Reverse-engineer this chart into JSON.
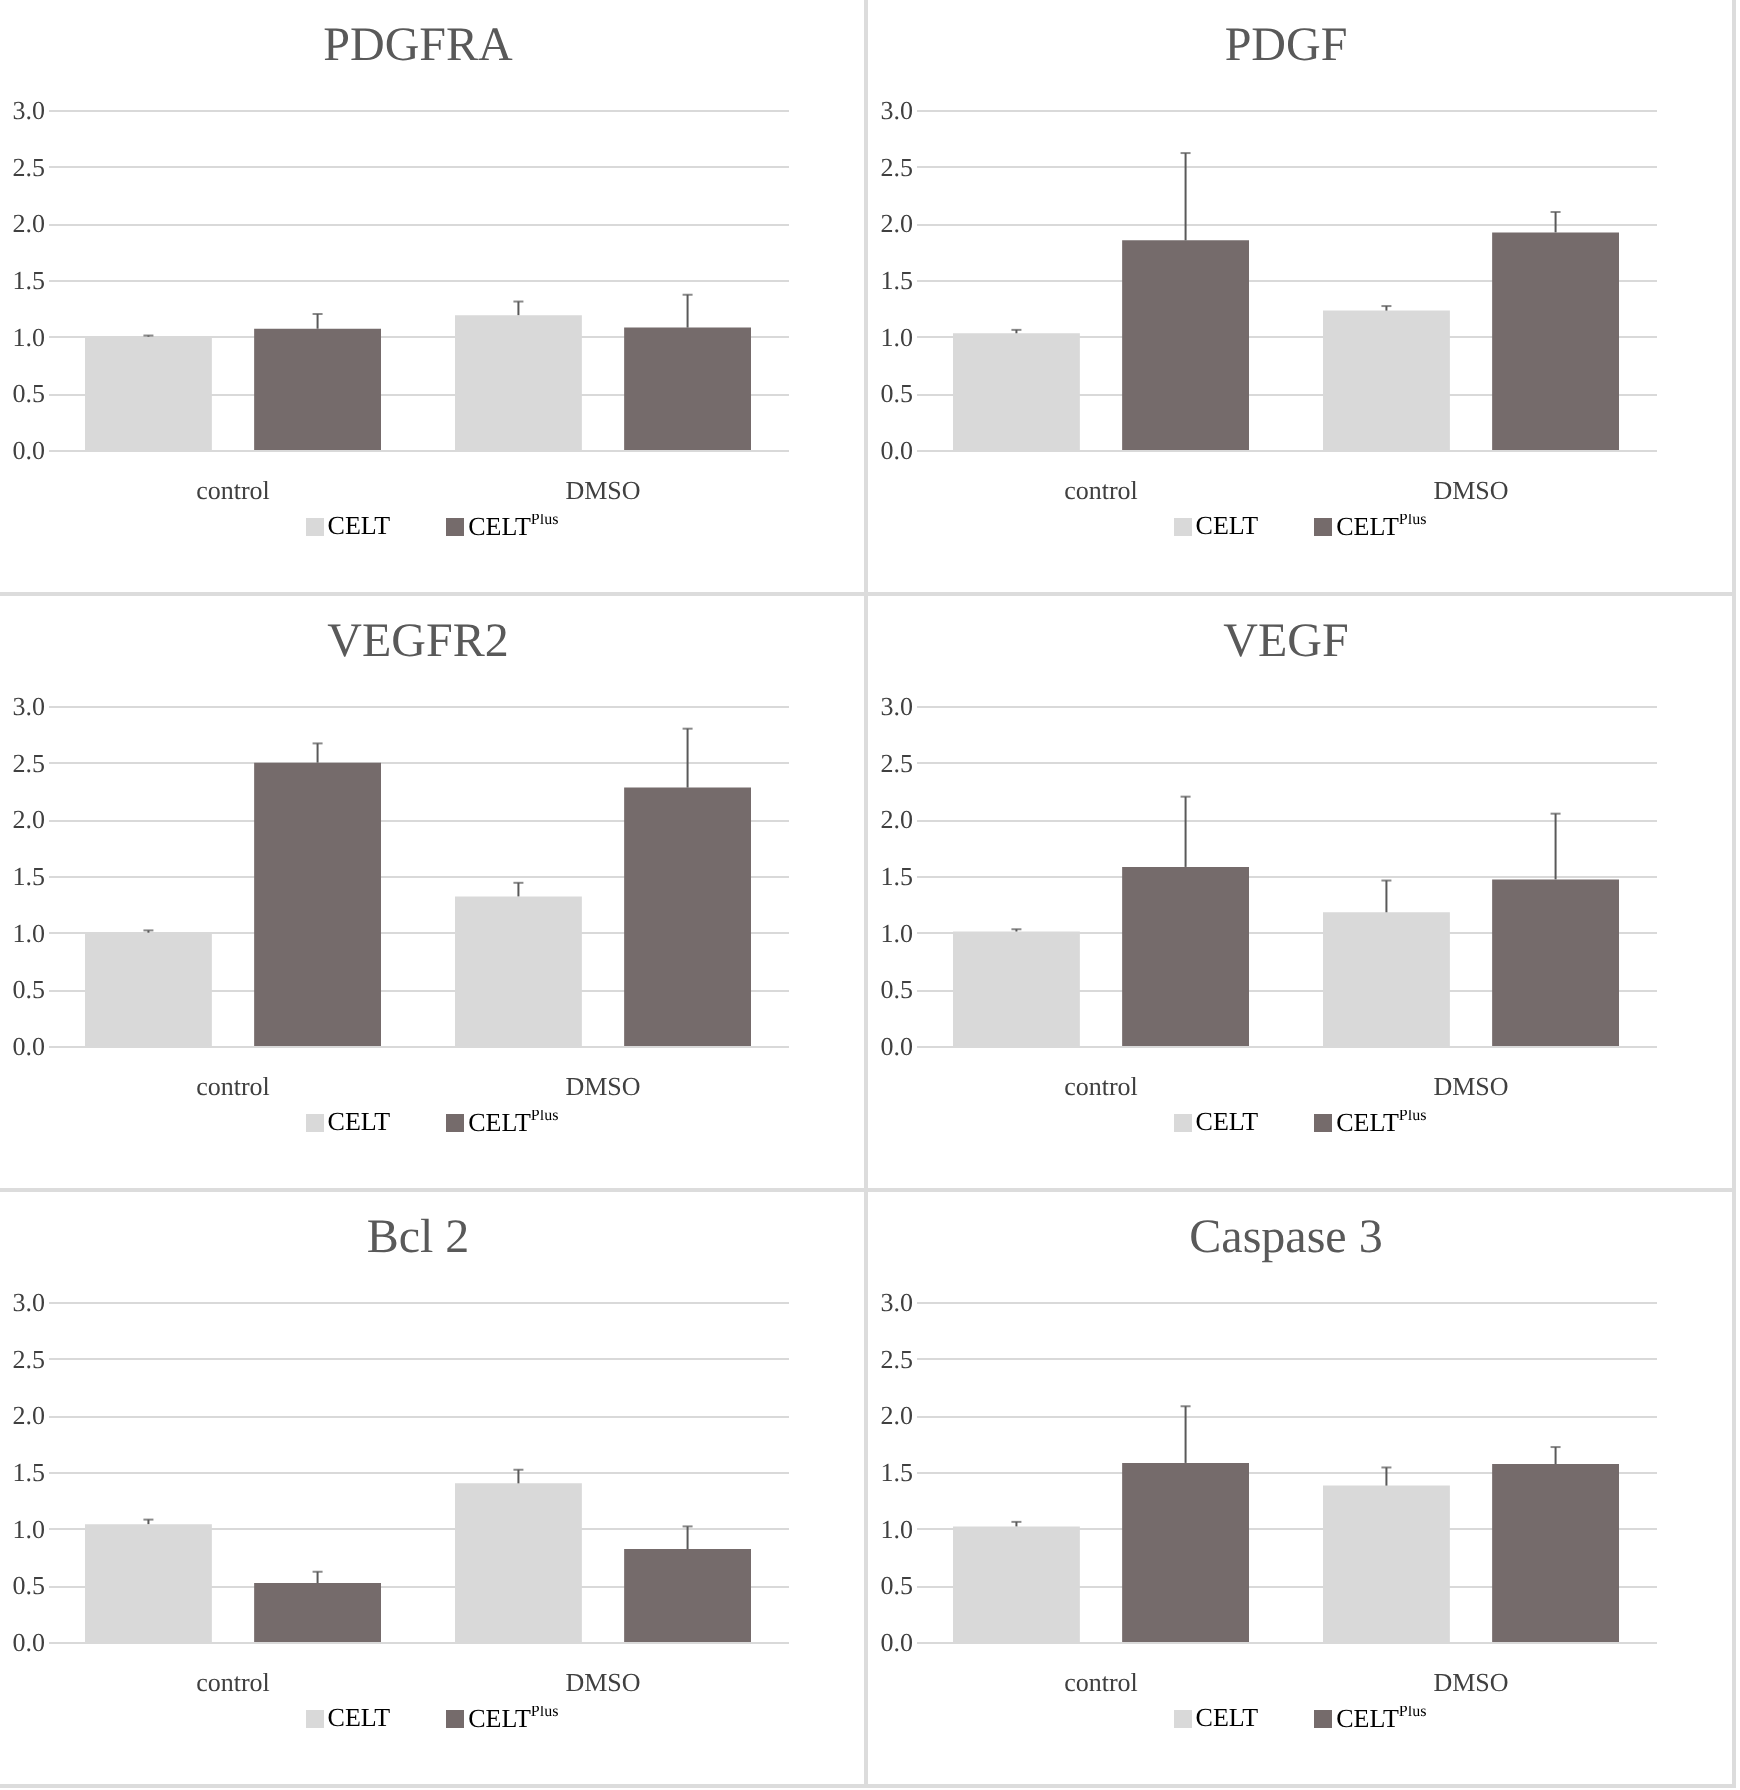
{
  "chart_data": [
    {
      "type": "bar",
      "title": "PDGFRA",
      "categories": [
        "control",
        "DMSO"
      ],
      "series": [
        {
          "name": "CELT",
          "color": "#d9d9d9",
          "values": [
            1.0,
            1.19
          ],
          "errors": [
            [
              1.0,
              1.01
            ],
            [
              1.19,
              1.31
            ]
          ]
        },
        {
          "name": "CELT$^{Plus}$",
          "color": "#756b6b",
          "values": [
            1.07,
            1.08
          ],
          "errors": [
            [
              1.07,
              1.2
            ],
            [
              1.08,
              1.37
            ]
          ]
        }
      ],
      "ylim": [
        0,
        3
      ],
      "yticks": [
        {
          "value": 0,
          "label": "0.0"
        },
        {
          "value": 0.5,
          "label": "0.5"
        },
        {
          "value": 1,
          "label": "1.0"
        },
        {
          "value": 1.5,
          "label": "1.5"
        },
        {
          "value": 2,
          "label": "2.0"
        },
        {
          "value": 2.5,
          "label": "2.5"
        },
        {
          "value": 3,
          "label": "3.0"
        }
      ],
      "grid": "y",
      "legend": "bottom"
    },
    {
      "type": "bar",
      "title": "PDGF",
      "categories": [
        "control",
        "DMSO"
      ],
      "series": [
        {
          "name": "CELT",
          "color": "#d9d9d9",
          "values": [
            1.03,
            1.23
          ],
          "errors": [
            [
              1.03,
              1.06
            ],
            [
              1.23,
              1.27
            ]
          ]
        },
        {
          "name": "CELT$^{Plus}$",
          "color": "#756b6b",
          "values": [
            1.85,
            1.92
          ],
          "errors": [
            [
              1.85,
              2.62
            ],
            [
              1.92,
              2.1
            ]
          ]
        }
      ],
      "ylim": [
        0,
        3
      ],
      "yticks": [
        {
          "value": 0,
          "label": "0.0"
        },
        {
          "value": 0.5,
          "label": "0.5"
        },
        {
          "value": 1,
          "label": "1.0"
        },
        {
          "value": 1.5,
          "label": "1.5"
        },
        {
          "value": 2,
          "label": "2.0"
        },
        {
          "value": 2.5,
          "label": "2.5"
        },
        {
          "value": 3,
          "label": "3.0"
        }
      ],
      "grid": "y",
      "legend": "bottom"
    },
    {
      "type": "bar",
      "title": "VEGFR2",
      "categories": [
        "control",
        "DMSO"
      ],
      "series": [
        {
          "name": "CELT",
          "color": "#d9d9d9",
          "values": [
            1.0,
            1.32
          ],
          "errors": [
            [
              1.0,
              1.02
            ],
            [
              1.32,
              1.44
            ]
          ]
        },
        {
          "name": "CELT$^{Plus}$",
          "color": "#756b6b",
          "values": [
            2.5,
            2.28
          ],
          "errors": [
            [
              2.5,
              2.67
            ],
            [
              2.28,
              2.8
            ]
          ]
        }
      ],
      "ylim": [
        0,
        3
      ],
      "yticks": [
        {
          "value": 0,
          "label": "0.0"
        },
        {
          "value": 0.5,
          "label": "0.5"
        },
        {
          "value": 1,
          "label": "1.0"
        },
        {
          "value": 1.5,
          "label": "1.5"
        },
        {
          "value": 2,
          "label": "2.0"
        },
        {
          "value": 2.5,
          "label": "2.5"
        },
        {
          "value": 3,
          "label": "3.0"
        }
      ],
      "grid": "y",
      "legend": "bottom"
    },
    {
      "type": "bar",
      "title": "VEGF",
      "categories": [
        "control",
        "DMSO"
      ],
      "series": [
        {
          "name": "CELT",
          "color": "#d9d9d9",
          "values": [
            1.01,
            1.18
          ],
          "errors": [
            [
              1.01,
              1.03
            ],
            [
              1.18,
              1.46
            ]
          ]
        },
        {
          "name": "CELT$^{Plus}$",
          "color": "#756b6b",
          "values": [
            1.58,
            1.47
          ],
          "errors": [
            [
              1.58,
              2.2
            ],
            [
              1.47,
              2.05
            ]
          ]
        }
      ],
      "ylim": [
        0,
        3
      ],
      "yticks": [
        {
          "value": 0,
          "label": "0.0"
        },
        {
          "value": 0.5,
          "label": "0.5"
        },
        {
          "value": 1,
          "label": "1.0"
        },
        {
          "value": 1.5,
          "label": "1.5"
        },
        {
          "value": 2,
          "label": "2.0"
        },
        {
          "value": 2.5,
          "label": "2.5"
        },
        {
          "value": 3,
          "label": "3.0"
        }
      ],
      "grid": "y",
      "legend": "bottom"
    },
    {
      "type": "bar",
      "title": "Bcl 2",
      "categories": [
        "control",
        "DMSO"
      ],
      "series": [
        {
          "name": "CELT",
          "color": "#d9d9d9",
          "values": [
            1.04,
            1.4
          ],
          "errors": [
            [
              1.04,
              1.08
            ],
            [
              1.4,
              1.52
            ]
          ]
        },
        {
          "name": "CELT$^{Plus}$",
          "color": "#756b6b",
          "values": [
            0.52,
            0.82
          ],
          "errors": [
            [
              0.52,
              0.62
            ],
            [
              0.82,
              1.02
            ]
          ]
        }
      ],
      "ylim": [
        0,
        3
      ],
      "yticks": [
        {
          "value": 0,
          "label": "0.0"
        },
        {
          "value": 0.5,
          "label": "0.5"
        },
        {
          "value": 1,
          "label": "1.0"
        },
        {
          "value": 1.5,
          "label": "1.5"
        },
        {
          "value": 2,
          "label": "2.0"
        },
        {
          "value": 2.5,
          "label": "2.5"
        },
        {
          "value": 3,
          "label": "3.0"
        }
      ],
      "grid": "y",
      "legend": "bottom"
    },
    {
      "type": "bar",
      "title": "Caspase 3",
      "categories": [
        "control",
        "DMSO"
      ],
      "series": [
        {
          "name": "CELT",
          "color": "#d9d9d9",
          "values": [
            1.02,
            1.38
          ],
          "errors": [
            [
              1.02,
              1.06
            ],
            [
              1.38,
              1.54
            ]
          ]
        },
        {
          "name": "CELT$^{Plus}$",
          "color": "#756b6b",
          "values": [
            1.58,
            1.57
          ],
          "errors": [
            [
              1.58,
              2.08
            ],
            [
              1.57,
              1.72
            ]
          ]
        }
      ],
      "ylim": [
        0,
        3
      ],
      "yticks": [
        {
          "value": 0,
          "label": "0.0"
        },
        {
          "value": 0.5,
          "label": "0.5"
        },
        {
          "value": 1,
          "label": "1.0"
        },
        {
          "value": 1.5,
          "label": "1.5"
        },
        {
          "value": 2,
          "label": "2.0"
        },
        {
          "value": 2.5,
          "label": "2.5"
        },
        {
          "value": 3,
          "label": "3.0"
        }
      ],
      "grid": "y",
      "legend": "bottom"
    }
  ]
}
